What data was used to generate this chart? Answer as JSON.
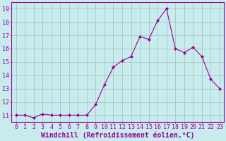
{
  "x": [
    0,
    1,
    2,
    3,
    4,
    5,
    6,
    7,
    8,
    9,
    10,
    11,
    12,
    13,
    14,
    15,
    16,
    17,
    18,
    19,
    20,
    21,
    22,
    23
  ],
  "y": [
    11,
    11,
    10.8,
    11.1,
    11,
    11,
    11,
    11,
    11,
    11.8,
    13.3,
    14.6,
    15.1,
    15.4,
    16.9,
    16.7,
    18.1,
    19.0,
    16.0,
    15.7,
    16.1,
    15.4,
    13.7,
    13.0
  ],
  "line_color": "#990099",
  "marker_color": "#990099",
  "bg_color": "#c8ecec",
  "grid_color": "#9fbfbf",
  "xlabel": "Windchill (Refroidissement éolien,°C)",
  "xlabel_color": "#990099",
  "xticks": [
    0,
    1,
    2,
    3,
    4,
    5,
    6,
    7,
    8,
    9,
    10,
    11,
    12,
    13,
    14,
    15,
    16,
    17,
    18,
    19,
    20,
    21,
    22,
    23
  ],
  "yticks": [
    11,
    12,
    13,
    14,
    15,
    16,
    17,
    18,
    19
  ],
  "ylim": [
    10.5,
    19.5
  ],
  "xlim": [
    -0.5,
    23.5
  ],
  "tick_color": "#990099",
  "tick_labelsize": 6,
  "xlabel_fontsize": 7,
  "spine_color": "#990099"
}
